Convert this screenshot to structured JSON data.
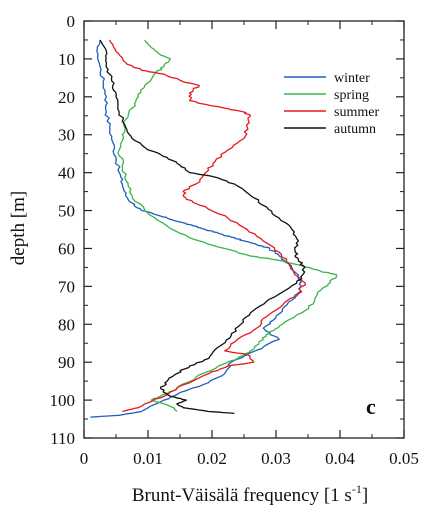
{
  "chart_data": {
    "type": "line",
    "xlabel_main": "Brunt-Väisälä frequency [1 s",
    "xlabel_sup": "-1",
    "xlabel_close": "]",
    "ylabel": "depth [m]",
    "panel_label": "c",
    "xlim": [
      0,
      0.05
    ],
    "ylim": [
      0,
      110
    ],
    "y_inverted": true,
    "x_ticks": [
      "0",
      "0.01",
      "0.02",
      "0.03",
      "0.04",
      "0.05"
    ],
    "y_ticks": [
      "0",
      "10",
      "20",
      "30",
      "40",
      "50",
      "60",
      "70",
      "80",
      "90",
      "100",
      "110"
    ],
    "grid": false,
    "legend_position": "top-right",
    "series": [
      {
        "name": "winter",
        "color": "#1f5fbf",
        "points": [
          [
            0.0025,
            5
          ],
          [
            0.002,
            8
          ],
          [
            0.0025,
            12
          ],
          [
            0.003,
            16
          ],
          [
            0.0035,
            20
          ],
          [
            0.0035,
            24
          ],
          [
            0.004,
            28
          ],
          [
            0.0045,
            32
          ],
          [
            0.005,
            36
          ],
          [
            0.0055,
            40
          ],
          [
            0.006,
            43
          ],
          [
            0.0065,
            46
          ],
          [
            0.0075,
            48
          ],
          [
            0.009,
            50
          ],
          [
            0.011,
            51
          ],
          [
            0.013,
            52
          ],
          [
            0.015,
            53
          ],
          [
            0.017,
            54
          ],
          [
            0.019,
            55
          ],
          [
            0.021,
            56
          ],
          [
            0.023,
            57
          ],
          [
            0.025,
            58
          ],
          [
            0.027,
            59
          ],
          [
            0.029,
            60
          ],
          [
            0.0305,
            62
          ],
          [
            0.032,
            64
          ],
          [
            0.0335,
            67
          ],
          [
            0.034,
            70
          ],
          [
            0.033,
            73
          ],
          [
            0.031,
            76
          ],
          [
            0.0295,
            79
          ],
          [
            0.028,
            81
          ],
          [
            0.0305,
            84
          ],
          [
            0.028,
            86
          ],
          [
            0.0255,
            88
          ],
          [
            0.023,
            90
          ],
          [
            0.022,
            93
          ],
          [
            0.0185,
            96
          ],
          [
            0.015,
            98
          ],
          [
            0.0125,
            100
          ],
          [
            0.01,
            102
          ],
          [
            0.009,
            103
          ],
          [
            0.0055,
            104
          ],
          [
            0.001,
            104.5
          ]
        ]
      },
      {
        "name": "spring",
        "color": "#39b54a",
        "points": [
          [
            0.0095,
            5
          ],
          [
            0.0105,
            7
          ],
          [
            0.012,
            9
          ],
          [
            0.0135,
            10
          ],
          [
            0.0125,
            12
          ],
          [
            0.011,
            14
          ],
          [
            0.0095,
            17
          ],
          [
            0.0085,
            20
          ],
          [
            0.0075,
            23
          ],
          [
            0.0065,
            26
          ],
          [
            0.006,
            30
          ],
          [
            0.0055,
            34
          ],
          [
            0.006,
            38
          ],
          [
            0.0065,
            42
          ],
          [
            0.0075,
            46
          ],
          [
            0.0095,
            50
          ],
          [
            0.012,
            53
          ],
          [
            0.015,
            56
          ],
          [
            0.018,
            58
          ],
          [
            0.022,
            60
          ],
          [
            0.026,
            62
          ],
          [
            0.03,
            63
          ],
          [
            0.034,
            64.5
          ],
          [
            0.037,
            66
          ],
          [
            0.0395,
            67
          ],
          [
            0.0385,
            69
          ],
          [
            0.037,
            71
          ],
          [
            0.036,
            74
          ],
          [
            0.034,
            77
          ],
          [
            0.031,
            80
          ],
          [
            0.029,
            82
          ],
          [
            0.028,
            84
          ],
          [
            0.026,
            87
          ],
          [
            0.024,
            89
          ],
          [
            0.021,
            91
          ],
          [
            0.0175,
            94
          ],
          [
            0.0145,
            97
          ],
          [
            0.012,
            99
          ],
          [
            0.0105,
            100
          ],
          [
            0.0125,
            101
          ],
          [
            0.014,
            102
          ],
          [
            0.0145,
            103
          ]
        ]
      },
      {
        "name": "summer",
        "color": "#e31a1c",
        "points": [
          [
            0.004,
            5
          ],
          [
            0.005,
            8
          ],
          [
            0.0065,
            11
          ],
          [
            0.009,
            13
          ],
          [
            0.0125,
            14
          ],
          [
            0.0155,
            16
          ],
          [
            0.018,
            17
          ],
          [
            0.0165,
            19
          ],
          [
            0.0165,
            21
          ],
          [
            0.019,
            22
          ],
          [
            0.022,
            23
          ],
          [
            0.025,
            24
          ],
          [
            0.026,
            25
          ],
          [
            0.0255,
            28
          ],
          [
            0.025,
            31
          ],
          [
            0.0225,
            34
          ],
          [
            0.0205,
            37
          ],
          [
            0.019,
            40
          ],
          [
            0.0175,
            43
          ],
          [
            0.0155,
            45
          ],
          [
            0.016,
            47
          ],
          [
            0.019,
            49
          ],
          [
            0.0225,
            52
          ],
          [
            0.0255,
            55
          ],
          [
            0.028,
            58
          ],
          [
            0.0305,
            61
          ],
          [
            0.032,
            64
          ],
          [
            0.033,
            67
          ],
          [
            0.0345,
            69
          ],
          [
            0.0335,
            72
          ],
          [
            0.031,
            75
          ],
          [
            0.0285,
            78
          ],
          [
            0.027,
            81
          ],
          [
            0.024,
            84
          ],
          [
            0.022,
            87
          ],
          [
            0.0255,
            88
          ],
          [
            0.0265,
            90
          ],
          [
            0.0225,
            91
          ],
          [
            0.0195,
            93
          ],
          [
            0.0155,
            96
          ],
          [
            0.0125,
            99
          ],
          [
            0.0095,
            101
          ],
          [
            0.0085,
            102
          ],
          [
            0.006,
            103
          ]
        ]
      },
      {
        "name": "autumn",
        "color": "#111111",
        "points": [
          [
            0.0025,
            5
          ],
          [
            0.0035,
            8
          ],
          [
            0.0035,
            11
          ],
          [
            0.004,
            14
          ],
          [
            0.0045,
            17
          ],
          [
            0.005,
            20
          ],
          [
            0.0055,
            24
          ],
          [
            0.0065,
            28
          ],
          [
            0.0075,
            31
          ],
          [
            0.01,
            34
          ],
          [
            0.013,
            36
          ],
          [
            0.015,
            38
          ],
          [
            0.0165,
            40
          ],
          [
            0.02,
            41
          ],
          [
            0.0235,
            43
          ],
          [
            0.026,
            46
          ],
          [
            0.0285,
            49
          ],
          [
            0.0305,
            52
          ],
          [
            0.0325,
            55
          ],
          [
            0.0335,
            58
          ],
          [
            0.033,
            61
          ],
          [
            0.0335,
            63
          ],
          [
            0.0345,
            65
          ],
          [
            0.034,
            68
          ],
          [
            0.0315,
            71
          ],
          [
            0.0285,
            74
          ],
          [
            0.026,
            77
          ],
          [
            0.0245,
            80
          ],
          [
            0.023,
            83
          ],
          [
            0.021,
            86
          ],
          [
            0.0195,
            89
          ],
          [
            0.0165,
            91
          ],
          [
            0.0145,
            93
          ],
          [
            0.013,
            95
          ],
          [
            0.012,
            97
          ],
          [
            0.0135,
            99
          ],
          [
            0.016,
            100
          ],
          [
            0.0145,
            101
          ],
          [
            0.0155,
            102
          ],
          [
            0.0195,
            103
          ],
          [
            0.0235,
            103.5
          ]
        ]
      }
    ]
  }
}
